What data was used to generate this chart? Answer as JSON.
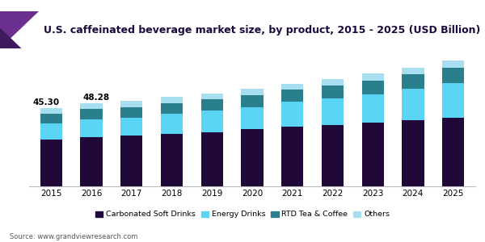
{
  "years": [
    2015,
    2016,
    2017,
    2018,
    2019,
    2020,
    2021,
    2022,
    2023,
    2024,
    2025
  ],
  "carbonated_soft_drinks": [
    27.0,
    28.5,
    29.5,
    30.5,
    31.5,
    33.0,
    34.5,
    35.5,
    37.0,
    38.5,
    40.0
  ],
  "energy_drinks": [
    9.5,
    10.5,
    10.5,
    11.5,
    12.5,
    13.0,
    14.5,
    15.5,
    16.5,
    18.0,
    20.0
  ],
  "rtd_tea_coffee": [
    5.5,
    5.8,
    6.0,
    6.2,
    6.5,
    6.8,
    7.0,
    7.5,
    8.0,
    8.5,
    9.0
  ],
  "others": [
    3.3,
    3.48,
    3.5,
    3.8,
    3.5,
    3.7,
    3.5,
    3.5,
    4.0,
    4.0,
    4.0
  ],
  "annotation_2015": "45.30",
  "annotation_2016": "48.28",
  "colors": {
    "carbonated_soft_drinks": "#200838",
    "energy_drinks": "#5bd5f5",
    "rtd_tea_coffee": "#2a7f8c",
    "others": "#a8dff0"
  },
  "legend_labels": [
    "Carbonated Soft Drinks",
    "Energy Drinks",
    "RTD Tea & Coffee",
    "Others"
  ],
  "title": "U.S. caffeinated beverage market size, by product, 2015 - 2025 (USD Billion)",
  "source": "Source: www.grandviewresearch.com",
  "title_color": "#1a0a40",
  "background_color": "#ffffff",
  "purple_bar_color": "#6b2f8f",
  "purple_triangle_color": "#3d1a5c",
  "title_fontsize": 9.0,
  "bar_width": 0.55,
  "ylim": [
    0,
    80
  ]
}
